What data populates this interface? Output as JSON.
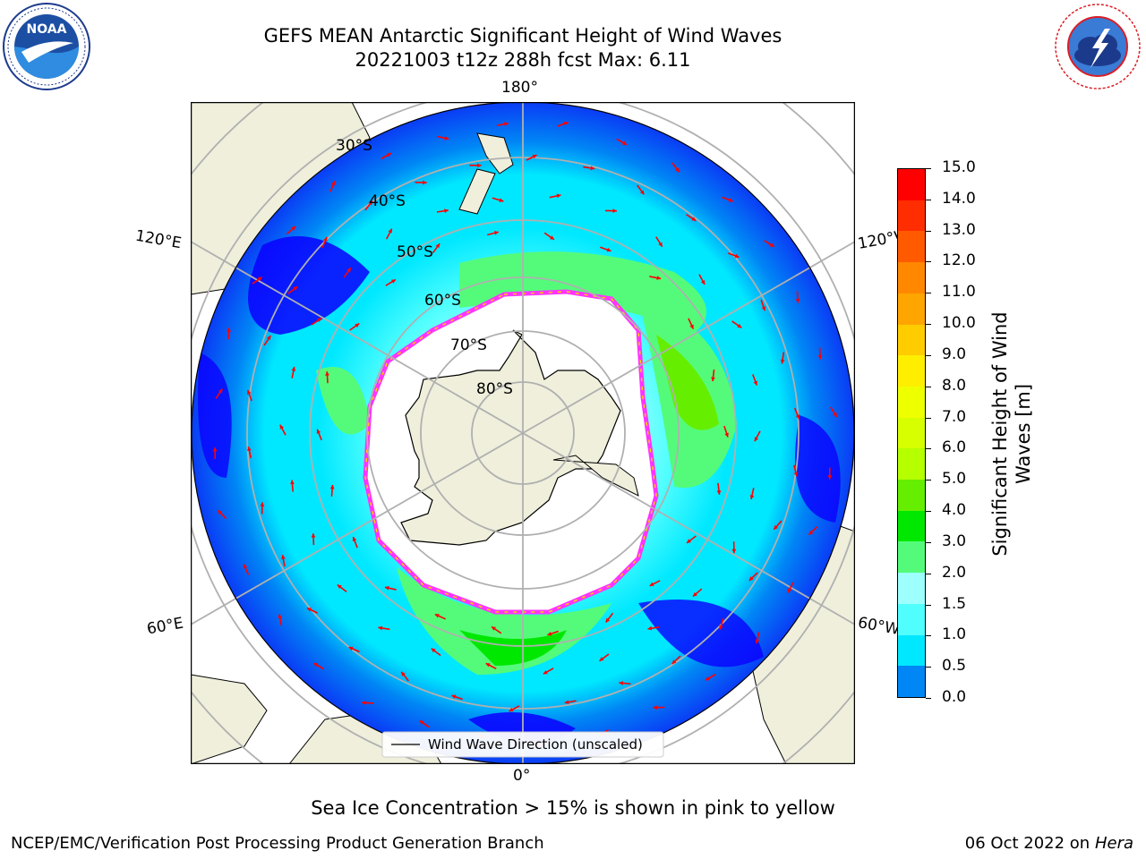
{
  "title_line1": "GEFS MEAN Antarctic Significant Height of Wind Waves",
  "title_line2": "20221003 t12z 288h fcst   Max: 6.11",
  "noara_logo": {
    "text": "NOAA",
    "ring_text": "NATIONAL OCEANIC AND ATMOSPHERIC ADMINISTRATION · U.S. DEPARTMENT OF COMMERCE"
  },
  "nws_logo": {
    "ring_text": "NATIONAL WEATHER SERVICE"
  },
  "map": {
    "longitude_labels": {
      "top": "180°",
      "bottom": "0°",
      "left_upper": "120°E",
      "left_lower": "60°E",
      "right_upper": "120°W",
      "right_lower": "60°W"
    },
    "latitude_labels": [
      "30°S",
      "40°S",
      "50°S",
      "60°S",
      "70°S",
      "80°S"
    ],
    "legend": "Wind Wave Direction (unscaled)",
    "colors": {
      "land": "#efefdc",
      "ice": "#ffffff",
      "ice_edge": "#ff33ff",
      "arrows": "#ff0000"
    }
  },
  "colorbar": {
    "label": "Significant Height of Wind Waves [m]",
    "label_line1": "Significant Height of Wind",
    "label_line2": "Waves [m]",
    "ticks": [
      "15.0",
      "14.0",
      "13.0",
      "12.0",
      "11.0",
      "10.0",
      "9.0",
      "8.0",
      "7.0",
      "6.0",
      "5.0",
      "4.0",
      "3.0",
      "2.0",
      "1.5",
      "1.0",
      "0.5",
      "0.0"
    ],
    "colors": [
      "#ff0000",
      "#ff2d00",
      "#ff5a00",
      "#ff8800",
      "#ffa500",
      "#ffcc00",
      "#ffee00",
      "#eeff00",
      "#d7ff00",
      "#b5ff00",
      "#66ee00",
      "#00e800",
      "#54fb7a",
      "#9dfffe",
      "#51fefe",
      "#00e8ff",
      "#0086f5",
      "#0a00ff"
    ]
  },
  "caption": "Sea Ice Concentration > 15% is shown in pink to yellow",
  "footer_left": "NCEP/EMC/Verification Post Processing Product Generation Branch",
  "footer_date": "06 Oct 2022 on ",
  "footer_host": "Hera"
}
